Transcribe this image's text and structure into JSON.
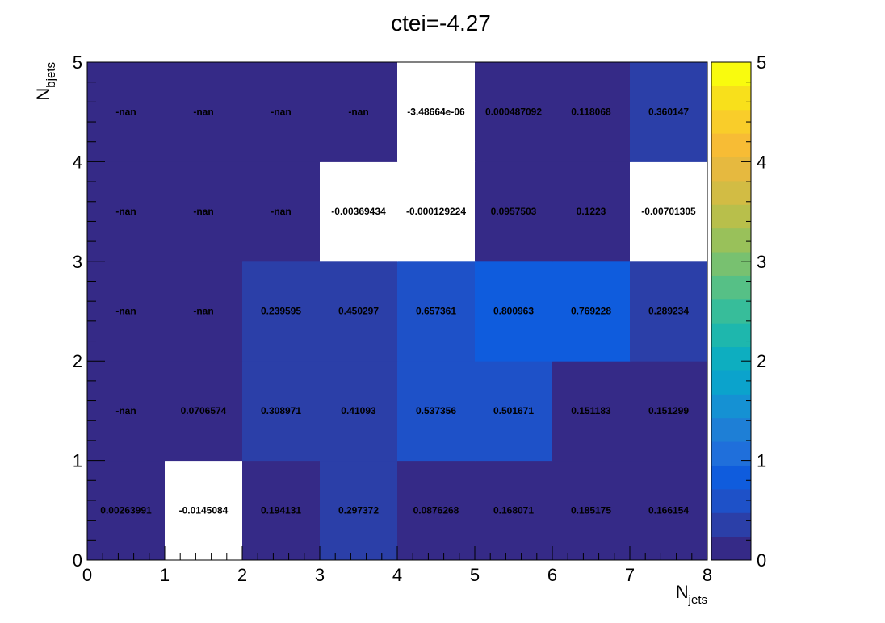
{
  "chart_data": {
    "type": "heatmap",
    "title": "ctei=-4.27",
    "xlabel": {
      "base": "N",
      "sub": "jets"
    },
    "ylabel": {
      "base": "N",
      "sub": "bjets"
    },
    "xlim": [
      0,
      8
    ],
    "ylim": [
      0,
      5
    ],
    "zlim": [
      0,
      5
    ],
    "x_ticks": [
      "0",
      "1",
      "2",
      "3",
      "4",
      "5",
      "6",
      "7",
      "8"
    ],
    "y_ticks": [
      "0",
      "1",
      "2",
      "3",
      "4",
      "5"
    ],
    "z_ticks": [
      "0",
      "1",
      "2",
      "3",
      "4",
      "5"
    ],
    "colorbar_colors": [
      "#352a87",
      "#2b3fa8",
      "#1e51c8",
      "#0f5cdd",
      "#1f6fdb",
      "#1e7fd6",
      "#1591d3",
      "#0ba3cc",
      "#0daec0",
      "#1eb7ad",
      "#37bd9a",
      "#56c086",
      "#78c170",
      "#99c15a",
      "#b8bf4b",
      "#d2bc44",
      "#e6b93f",
      "#f7bc35",
      "#f9cd2a",
      "#f8e01b",
      "#f9fb0e"
    ],
    "rows": [
      {
        "y": 0,
        "values": [
          "0.00263991",
          "-0.0145084",
          "0.194131",
          "0.297372",
          "0.0876268",
          "0.168071",
          "0.185175",
          "0.166154"
        ]
      },
      {
        "y": 1,
        "values": [
          "-nan",
          "0.0706574",
          "0.308971",
          "0.41093",
          "0.537356",
          "0.501671",
          "0.151183",
          "0.151299"
        ]
      },
      {
        "y": 2,
        "values": [
          "-nan",
          "-nan",
          "0.239595",
          "0.450297",
          "0.657361",
          "0.800963",
          "0.769228",
          "0.289234"
        ]
      },
      {
        "y": 3,
        "values": [
          "-nan",
          "-nan",
          "-nan",
          "-0.00369434",
          "-0.000129224",
          "0.0957503",
          "0.1223",
          "-0.00701305"
        ]
      },
      {
        "y": 4,
        "values": [
          "-nan",
          "-nan",
          "-nan",
          "-nan",
          "-3.48664e-06",
          "0.000487092",
          "0.118068",
          "0.360147"
        ]
      }
    ]
  }
}
